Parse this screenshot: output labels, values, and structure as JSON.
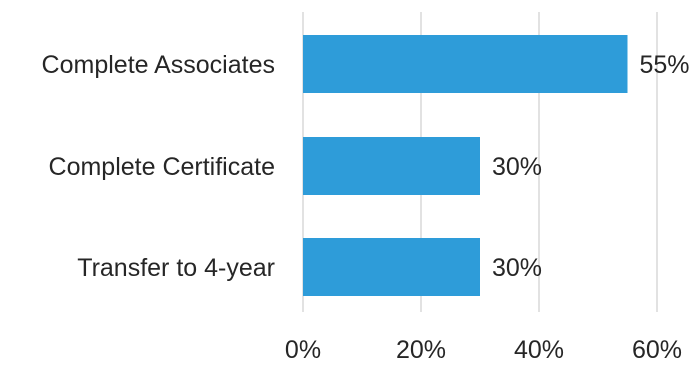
{
  "chart_data": {
    "type": "bar",
    "orientation": "horizontal",
    "categories": [
      "Complete Associates",
      "Complete Certificate",
      "Transfer to 4-year"
    ],
    "values": [
      55,
      30,
      30
    ],
    "value_labels": [
      "55%",
      "30%",
      "30%"
    ],
    "xlim": [
      0,
      60
    ],
    "x_ticks": [
      0,
      20,
      40,
      60
    ],
    "x_tick_labels": [
      "0%",
      "20%",
      "40%",
      "60%"
    ],
    "grid": true,
    "legend": "none",
    "bar_color": "#2E9CD9",
    "title": "",
    "xlabel": "",
    "ylabel": ""
  }
}
